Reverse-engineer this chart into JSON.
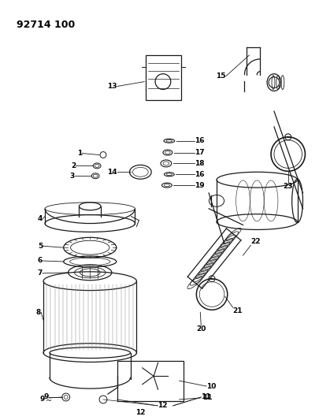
{
  "title": "92714 100",
  "background_color": "#ffffff",
  "line_color": "#1a1a1a",
  "figsize": [
    4.05,
    5.33
  ],
  "dpi": 100
}
